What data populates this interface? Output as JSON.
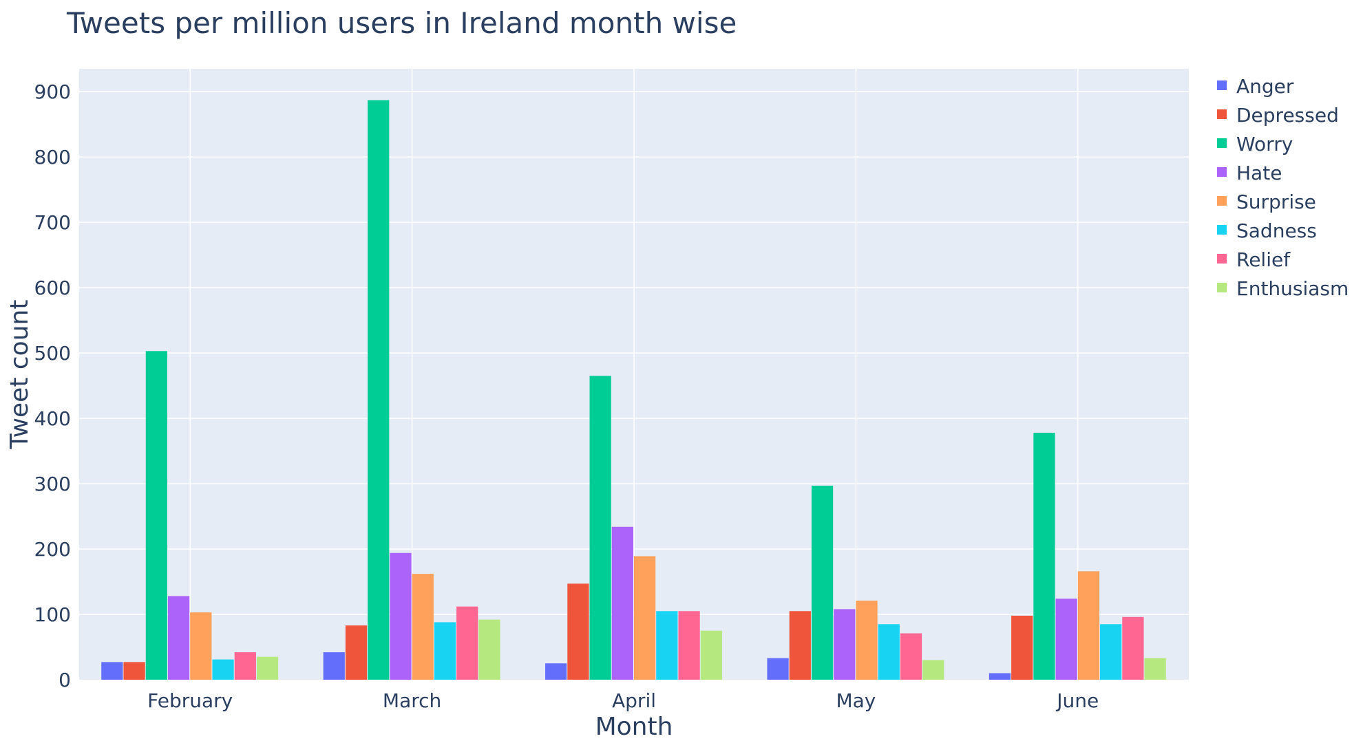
{
  "chart_data": {
    "type": "bar",
    "title": "Tweets per million users in Ireland month wise",
    "xlabel": "Month",
    "ylabel": "Tweet count",
    "categories": [
      "February",
      "March",
      "April",
      "May",
      "June"
    ],
    "ylim": [
      0,
      935
    ],
    "yticks": [
      0,
      100,
      200,
      300,
      400,
      500,
      600,
      700,
      800,
      900
    ],
    "grid": true,
    "legend_position": "top-right",
    "plot_bgcolor": "#e5ecf6",
    "gridcolor": "#ffffff",
    "series": [
      {
        "name": "Anger",
        "color": "#636efa",
        "values": [
          27,
          42,
          25,
          33,
          10
        ]
      },
      {
        "name": "Depressed",
        "color": "#ef553b",
        "values": [
          27,
          83,
          147,
          105,
          98
        ]
      },
      {
        "name": "Worry",
        "color": "#00cc96",
        "values": [
          503,
          887,
          465,
          297,
          378
        ]
      },
      {
        "name": "Hate",
        "color": "#ab63fa",
        "values": [
          128,
          194,
          234,
          108,
          124
        ]
      },
      {
        "name": "Surprise",
        "color": "#ffa15a",
        "values": [
          103,
          162,
          189,
          121,
          166
        ]
      },
      {
        "name": "Sadness",
        "color": "#19d3f3",
        "values": [
          31,
          88,
          105,
          85,
          85
        ]
      },
      {
        "name": "Relief",
        "color": "#ff6692",
        "values": [
          42,
          112,
          105,
          71,
          96
        ]
      },
      {
        "name": "Enthusiasm",
        "color": "#b6e880",
        "values": [
          35,
          92,
          75,
          30,
          33
        ]
      }
    ]
  }
}
